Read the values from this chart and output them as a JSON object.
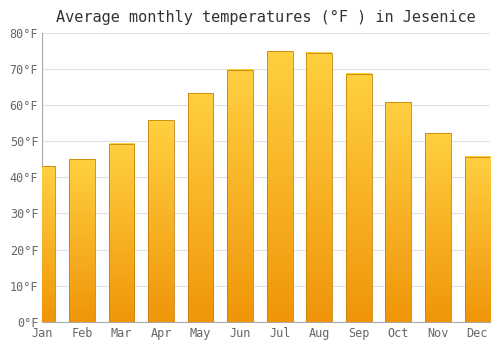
{
  "title": "Average monthly temperatures (°F ) in Jesenice",
  "months": [
    "Jan",
    "Feb",
    "Mar",
    "Apr",
    "May",
    "Jun",
    "Jul",
    "Aug",
    "Sep",
    "Oct",
    "Nov",
    "Dec"
  ],
  "values": [
    43.2,
    45.0,
    49.3,
    55.8,
    63.3,
    69.8,
    75.0,
    74.5,
    68.7,
    60.8,
    52.2,
    45.7
  ],
  "bar_color_bottom": "#F0950A",
  "bar_color_top": "#FFD040",
  "bar_edge_color": "#C8820A",
  "plot_bg_color": "#FFFFFF",
  "fig_bg_color": "#FFFFFF",
  "grid_color": "#E0E0E8",
  "ylim": [
    0,
    80
  ],
  "yticks": [
    0,
    10,
    20,
    30,
    40,
    50,
    60,
    70,
    80
  ],
  "title_fontsize": 11,
  "tick_fontsize": 8.5,
  "figsize": [
    5.0,
    3.5
  ],
  "dpi": 100
}
